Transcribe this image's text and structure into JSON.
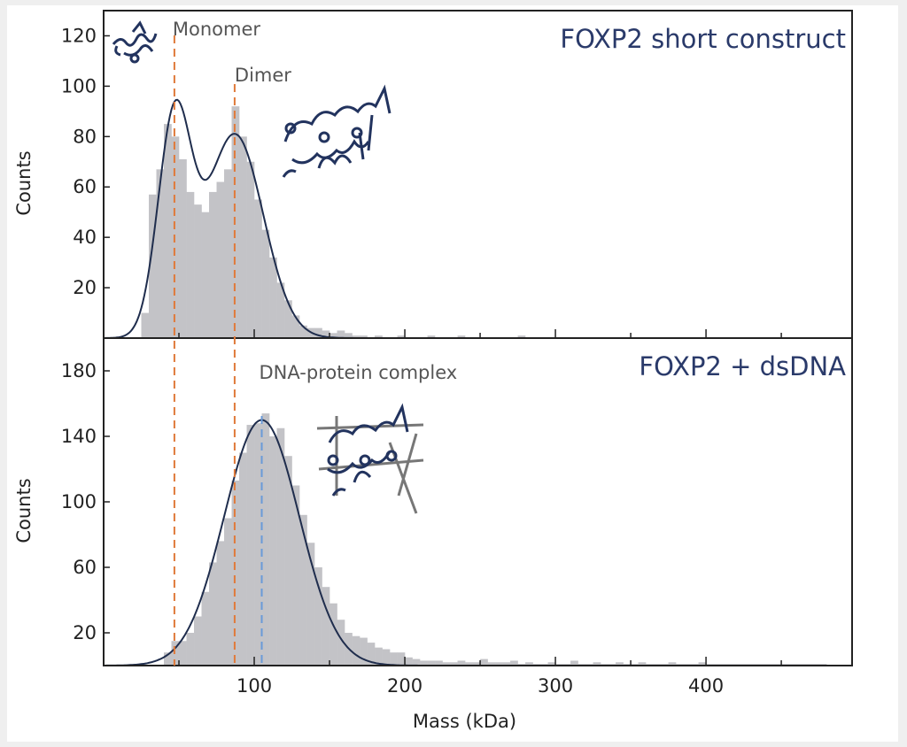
{
  "chart_data": [
    {
      "type": "bar",
      "title": "FOXP2 short construct",
      "xlabel": "Mass (kDa)",
      "ylabel": "Counts",
      "xlim": [
        0,
        497
      ],
      "ylim": [
        0,
        130
      ],
      "yticks": [
        20,
        40,
        60,
        80,
        100,
        120
      ],
      "bin_width": 5,
      "bin_start": 25,
      "values": [
        10,
        57,
        67,
        85,
        80,
        71,
        58,
        53,
        50,
        58,
        62,
        67,
        92,
        80,
        70,
        55,
        43,
        32,
        22,
        15,
        9,
        5,
        4,
        4,
        3,
        2,
        3,
        2,
        1,
        1,
        0,
        1,
        0,
        0,
        1,
        0,
        0,
        0,
        1,
        0,
        0,
        0,
        1,
        0,
        0,
        0,
        0,
        0,
        0,
        0,
        1
      ],
      "fit": {
        "type": "two-gaussian",
        "components": [
          {
            "mean": 47,
            "amplitude": 85,
            "sigma": 11
          },
          {
            "mean": 87,
            "amplitude": 81,
            "sigma": 19
          }
        ]
      },
      "annotations": [
        {
          "label": "Monomer",
          "x": 47
        },
        {
          "label": "Dimer",
          "x": 87
        }
      ]
    },
    {
      "type": "bar",
      "title": "FOXP2 + dsDNA",
      "xlabel": "Mass (kDa)",
      "ylabel": "Counts",
      "xlim": [
        0,
        497
      ],
      "ylim": [
        0,
        200
      ],
      "yticks": [
        20,
        60,
        100,
        140,
        180
      ],
      "xticks": [
        100,
        200,
        300,
        400
      ],
      "bin_width": 5,
      "bin_start": 40,
      "values": [
        8,
        15,
        15,
        20,
        30,
        45,
        63,
        76,
        90,
        113,
        130,
        147,
        148,
        154,
        140,
        145,
        128,
        110,
        92,
        75,
        60,
        48,
        38,
        28,
        20,
        18,
        17,
        14,
        11,
        10,
        8,
        8,
        5,
        4,
        3,
        3,
        3,
        2,
        2,
        3,
        2,
        2,
        4,
        2,
        2,
        2,
        3,
        1,
        2,
        1,
        1,
        2,
        1,
        1,
        3,
        1,
        1,
        2,
        1,
        1,
        2,
        1,
        1,
        2,
        1,
        1,
        1,
        2,
        1,
        1,
        1,
        2,
        1,
        1,
        1,
        1,
        1,
        1,
        1,
        1,
        1,
        1,
        1,
        1,
        1,
        1,
        1,
        1
      ],
      "fit": {
        "type": "gaussian",
        "components": [
          {
            "mean": 105,
            "amplitude": 150,
            "sigma": 25
          }
        ]
      },
      "annotations": [
        {
          "label": "DNA-protein complex",
          "x": 105
        }
      ]
    }
  ],
  "colors": {
    "bars": "#c3c3c7",
    "fit": "#1f2d4d",
    "monomer_dimer_lines": "#e07a3a",
    "complex_line": "#6a9ad8",
    "title": "#2a3a6a"
  }
}
